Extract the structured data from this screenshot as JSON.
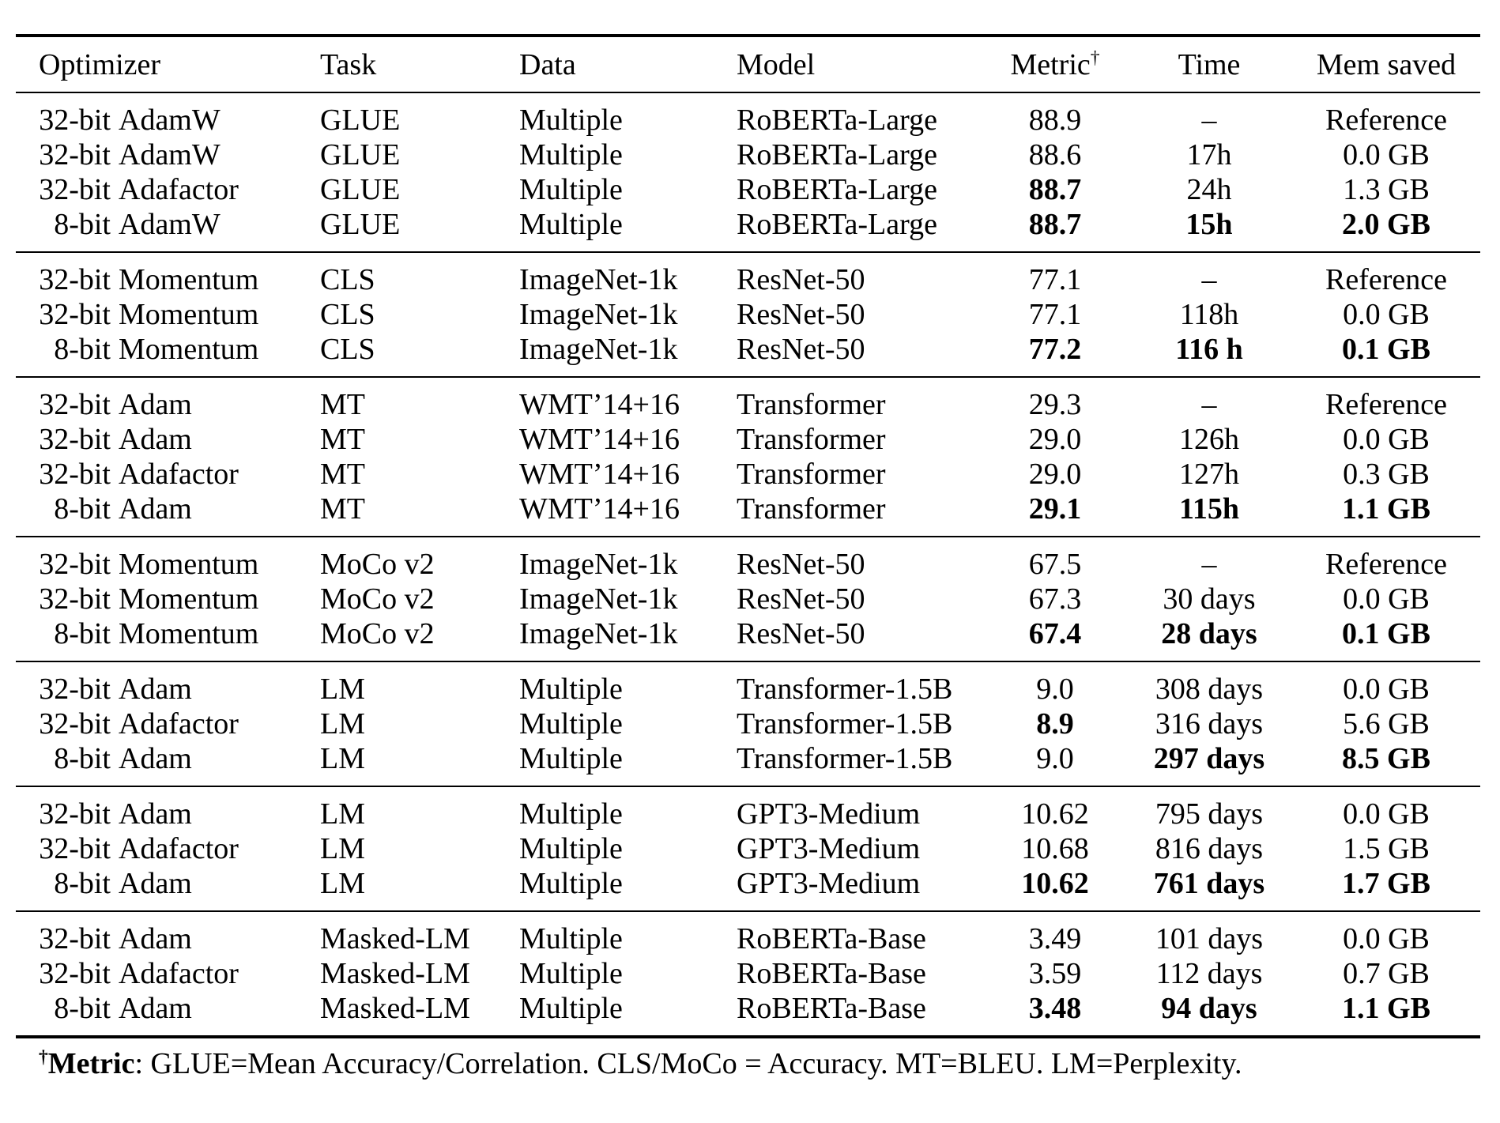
{
  "header": {
    "optimizer": "Optimizer",
    "task": "Task",
    "data": "Data",
    "model": "Model",
    "metric": "Metric",
    "metric_sup": "†",
    "time": "Time",
    "mem": "Mem saved"
  },
  "table": {
    "groups": [
      {
        "rows": [
          {
            "opt_prefix": "32-bit",
            "opt_name": "AdamW",
            "task": "GLUE",
            "data": "Multiple",
            "model": "RoBERTa-Large",
            "metric": "88.9",
            "metric_b": false,
            "time": "–",
            "time_b": false,
            "mem": "Reference",
            "mem_b": false
          },
          {
            "opt_prefix": "32-bit",
            "opt_name": "AdamW",
            "task": "GLUE",
            "data": "Multiple",
            "model": "RoBERTa-Large",
            "metric": "88.6",
            "metric_b": false,
            "time": "17h",
            "time_b": false,
            "mem": "0.0 GB",
            "mem_b": false
          },
          {
            "opt_prefix": "32-bit",
            "opt_name": "Adafactor",
            "task": "GLUE",
            "data": "Multiple",
            "model": "RoBERTa-Large",
            "metric": "88.7",
            "metric_b": true,
            "time": "24h",
            "time_b": false,
            "mem": "1.3 GB",
            "mem_b": false
          },
          {
            "opt_prefix": "8-bit",
            "opt_name": "AdamW",
            "task": "GLUE",
            "data": "Multiple",
            "model": "RoBERTa-Large",
            "metric": "88.7",
            "metric_b": true,
            "time": "15h",
            "time_b": true,
            "mem": "2.0 GB",
            "mem_b": true
          }
        ]
      },
      {
        "rows": [
          {
            "opt_prefix": "32-bit",
            "opt_name": "Momentum",
            "task": "CLS",
            "data": "ImageNet-1k",
            "model": "ResNet-50",
            "metric": "77.1",
            "metric_b": false,
            "time": "–",
            "time_b": false,
            "mem": "Reference",
            "mem_b": false
          },
          {
            "opt_prefix": "32-bit",
            "opt_name": "Momentum",
            "task": "CLS",
            "data": "ImageNet-1k",
            "model": "ResNet-50",
            "metric": "77.1",
            "metric_b": false,
            "time": "118h",
            "time_b": false,
            "mem": "0.0 GB",
            "mem_b": false
          },
          {
            "opt_prefix": "8-bit",
            "opt_name": "Momentum",
            "task": "CLS",
            "data": "ImageNet-1k",
            "model": "ResNet-50",
            "metric": "77.2",
            "metric_b": true,
            "time": "116 h",
            "time_b": true,
            "mem": "0.1 GB",
            "mem_b": true
          }
        ]
      },
      {
        "rows": [
          {
            "opt_prefix": "32-bit",
            "opt_name": "Adam",
            "task": "MT",
            "data": "WMT’14+16",
            "model": "Transformer",
            "metric": "29.3",
            "metric_b": false,
            "time": "–",
            "time_b": false,
            "mem": "Reference",
            "mem_b": false
          },
          {
            "opt_prefix": "32-bit",
            "opt_name": "Adam",
            "task": "MT",
            "data": "WMT’14+16",
            "model": "Transformer",
            "metric": "29.0",
            "metric_b": false,
            "time": "126h",
            "time_b": false,
            "mem": "0.0 GB",
            "mem_b": false
          },
          {
            "opt_prefix": "32-bit",
            "opt_name": "Adafactor",
            "task": "MT",
            "data": "WMT’14+16",
            "model": "Transformer",
            "metric": "29.0",
            "metric_b": false,
            "time": "127h",
            "time_b": false,
            "mem": "0.3 GB",
            "mem_b": false
          },
          {
            "opt_prefix": "8-bit",
            "opt_name": "Adam",
            "task": "MT",
            "data": "WMT’14+16",
            "model": "Transformer",
            "metric": "29.1",
            "metric_b": true,
            "time": "115h",
            "time_b": true,
            "mem": "1.1 GB",
            "mem_b": true
          }
        ]
      },
      {
        "rows": [
          {
            "opt_prefix": "32-bit",
            "opt_name": "Momentum",
            "task": "MoCo v2",
            "data": "ImageNet-1k",
            "model": "ResNet-50",
            "metric": "67.5",
            "metric_b": false,
            "time": "–",
            "time_b": false,
            "mem": "Reference",
            "mem_b": false
          },
          {
            "opt_prefix": "32-bit",
            "opt_name": "Momentum",
            "task": "MoCo v2",
            "data": "ImageNet-1k",
            "model": "ResNet-50",
            "metric": "67.3",
            "metric_b": false,
            "time": "30 days",
            "time_b": false,
            "mem": "0.0 GB",
            "mem_b": false
          },
          {
            "opt_prefix": "8-bit",
            "opt_name": "Momentum",
            "task": "MoCo v2",
            "data": "ImageNet-1k",
            "model": "ResNet-50",
            "metric": "67.4",
            "metric_b": true,
            "time": "28 days",
            "time_b": true,
            "mem": "0.1 GB",
            "mem_b": true
          }
        ]
      },
      {
        "rows": [
          {
            "opt_prefix": "32-bit",
            "opt_name": "Adam",
            "task": "LM",
            "data": "Multiple",
            "model": "Transformer-1.5B",
            "metric": "9.0",
            "metric_b": false,
            "time": "308 days",
            "time_b": false,
            "mem": "0.0 GB",
            "mem_b": false
          },
          {
            "opt_prefix": "32-bit",
            "opt_name": "Adafactor",
            "task": "LM",
            "data": "Multiple",
            "model": "Transformer-1.5B",
            "metric": "8.9",
            "metric_b": true,
            "time": "316 days",
            "time_b": false,
            "mem": "5.6 GB",
            "mem_b": false
          },
          {
            "opt_prefix": "8-bit",
            "opt_name": "Adam",
            "task": "LM",
            "data": "Multiple",
            "model": "Transformer-1.5B",
            "metric": "9.0",
            "metric_b": false,
            "time": "297 days",
            "time_b": true,
            "mem": "8.5 GB",
            "mem_b": true
          }
        ]
      },
      {
        "rows": [
          {
            "opt_prefix": "32-bit",
            "opt_name": "Adam",
            "task": "LM",
            "data": "Multiple",
            "model": "GPT3-Medium",
            "metric": "10.62",
            "metric_b": false,
            "time": "795 days",
            "time_b": false,
            "mem": "0.0 GB",
            "mem_b": false
          },
          {
            "opt_prefix": "32-bit",
            "opt_name": "Adafactor",
            "task": "LM",
            "data": "Multiple",
            "model": "GPT3-Medium",
            "metric": "10.68",
            "metric_b": false,
            "time": "816 days",
            "time_b": false,
            "mem": "1.5 GB",
            "mem_b": false
          },
          {
            "opt_prefix": "8-bit",
            "opt_name": "Adam",
            "task": "LM",
            "data": "Multiple",
            "model": "GPT3-Medium",
            "metric": "10.62",
            "metric_b": true,
            "time": "761 days",
            "time_b": true,
            "mem": "1.7 GB",
            "mem_b": true
          }
        ]
      },
      {
        "rows": [
          {
            "opt_prefix": "32-bit",
            "opt_name": "Adam",
            "task": "Masked-LM",
            "data": "Multiple",
            "model": "RoBERTa-Base",
            "metric": "3.49",
            "metric_b": false,
            "time": "101 days",
            "time_b": false,
            "mem": "0.0 GB",
            "mem_b": false
          },
          {
            "opt_prefix": "32-bit",
            "opt_name": "Adafactor",
            "task": "Masked-LM",
            "data": "Multiple",
            "model": "RoBERTa-Base",
            "metric": "3.59",
            "metric_b": false,
            "time": "112 days",
            "time_b": false,
            "mem": "0.7 GB",
            "mem_b": false
          },
          {
            "opt_prefix": "8-bit",
            "opt_name": "Adam",
            "task": "Masked-LM",
            "data": "Multiple",
            "model": "RoBERTa-Base",
            "metric": "3.48",
            "metric_b": true,
            "time": "94 days",
            "time_b": true,
            "mem": "1.1 GB",
            "mem_b": true
          }
        ]
      }
    ]
  },
  "footnote": {
    "sup": "†",
    "label": "Metric",
    "text": ": GLUE=Mean Accuracy/Correlation. CLS/MoCo = Accuracy. MT=BLEU. LM=Perplexity."
  }
}
